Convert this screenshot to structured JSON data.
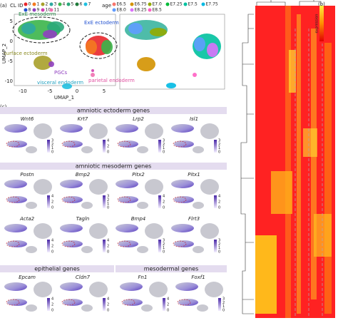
{
  "panel_a": {
    "label": "(a)",
    "cl_id_title": "CL ID",
    "cl_ids": [
      "0",
      "1",
      "2",
      "3",
      "4",
      "5",
      "6",
      "7",
      "8",
      "9",
      "10",
      "11"
    ],
    "age_title": "age",
    "ages": [
      "E6.5",
      "E6.75",
      "E7.0",
      "E7.25",
      "E7.5",
      "E7.75",
      "E8.0",
      "E8.25",
      "E8.5"
    ],
    "x_axis": "UMAP_1",
    "y_axis": "UMAP_2",
    "xticks": [
      "-10",
      "-5",
      "0",
      "5"
    ],
    "yticks": [
      "5",
      "0",
      "-5",
      "-10"
    ],
    "annotations": [
      "ExE mesoderm",
      "ExE ectoderm",
      "surface ectoderm",
      "PGCs",
      "visceral endoderm",
      "parietal endoderm"
    ]
  },
  "panel_b": {
    "label": "(b)",
    "legend_title": "expression"
  },
  "panel_c": {
    "label": "(c)",
    "sections": [
      {
        "title": "amniotic ectoderm genes",
        "genes": [
          {
            "name": "Wnt6",
            "scale": [
              "3",
              "2",
              "1",
              "0"
            ]
          },
          {
            "name": "Krt7",
            "scale": [
              "4",
              "2",
              "0"
            ]
          },
          {
            "name": "Lrp2",
            "scale": [
              "3",
              "2",
              "1",
              "0"
            ]
          },
          {
            "name": "Isl1",
            "scale": [
              "3",
              "2",
              "1",
              "0"
            ]
          }
        ]
      },
      {
        "title": "amniotic mesoderm genes",
        "genes": [
          {
            "name": "Postn",
            "scale": [
              "4",
              "2",
              "0"
            ]
          },
          {
            "name": "Bmp2",
            "scale": [
              "3",
              "2",
              "1",
              "0"
            ]
          },
          {
            "name": "Pitx2",
            "scale": [
              "4",
              "2",
              "0"
            ]
          },
          {
            "name": "Pitx1",
            "scale": [
              "4",
              "2",
              "0"
            ]
          },
          {
            "name": "Acta2",
            "scale": [
              "4",
              "2",
              "0"
            ]
          },
          {
            "name": "Tagln",
            "scale": [
              "4",
              "2",
              "0"
            ]
          },
          {
            "name": "Bmp4",
            "scale": [
              "3",
              "2",
              "1",
              "0"
            ]
          },
          {
            "name": "Flrt3",
            "scale": [
              "3",
              "2",
              "1",
              "0"
            ]
          }
        ]
      },
      {
        "title": "epithelial genes",
        "genes": [
          {
            "name": "Epcam",
            "scale": [
              "4",
              "2",
              "0"
            ]
          },
          {
            "name": "Cldn7",
            "scale": [
              "4",
              "2",
              "0"
            ]
          }
        ]
      },
      {
        "title": "mesodermal genes",
        "genes": [
          {
            "name": "Fn1",
            "scale": [
              "4",
              "2",
              "0"
            ]
          },
          {
            "name": "Foxf1",
            "scale": [
              "3",
              "2",
              "1",
              "0"
            ]
          }
        ]
      }
    ]
  }
}
